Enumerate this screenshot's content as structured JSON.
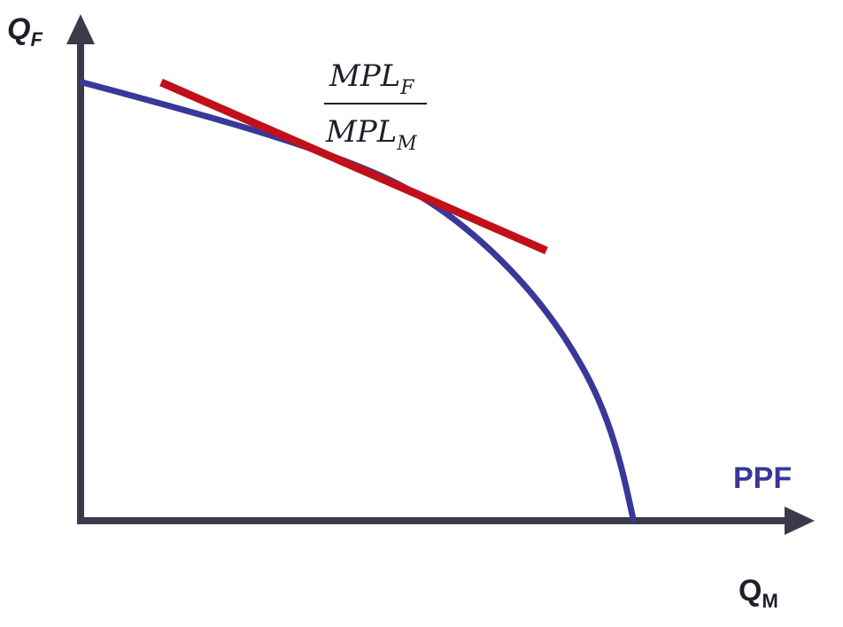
{
  "colors": {
    "axis": "#3b3a4a",
    "ppf_curve": "#38389a",
    "tangent_line": "#c0111a",
    "ppf_label": "#38389a",
    "text": "#1f1f2b"
  },
  "labels": {
    "y_axis": {
      "main": "Q",
      "sub": "F"
    },
    "x_axis": {
      "main": "Q",
      "sub": "M"
    },
    "curve": "PPF"
  },
  "slope_formula": {
    "numerator": {
      "main": "MPL",
      "sub": "F"
    },
    "denominator": {
      "main": "MPL",
      "sub": "M"
    }
  }
}
